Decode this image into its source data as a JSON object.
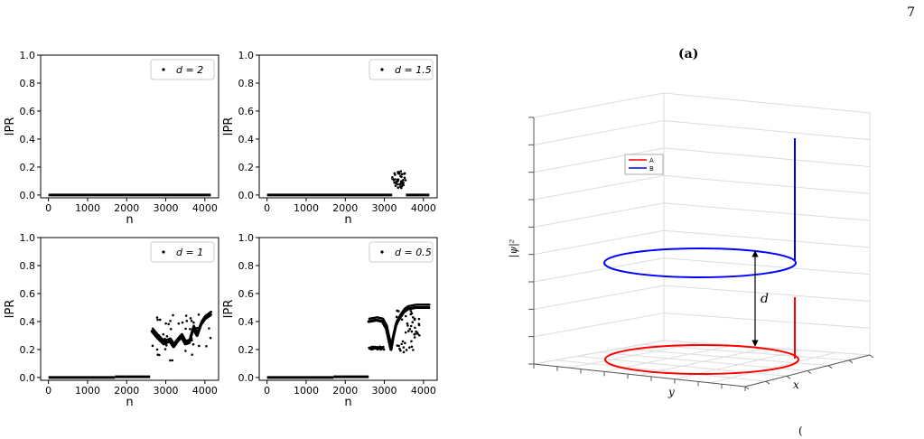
{
  "page_number": "7",
  "panel_a_label": "(a)",
  "panel_b_label_partial": "(",
  "chart_data": [
    {
      "type": "scatter",
      "xlabel": "n",
      "ylabel": "IPR",
      "xticks": [
        "0",
        "1000",
        "2000",
        "3000",
        "4000"
      ],
      "yticks": [
        "0.0",
        "0.2",
        "0.4",
        "0.6",
        "0.8",
        "1.0"
      ],
      "xlim": [
        -200,
        4350
      ],
      "ylim": [
        -0.02,
        1.0
      ],
      "legend": "d = 2",
      "legend_position": "top-right",
      "segments": [
        {
          "x": [
            0,
            4150
          ],
          "y": 0.0
        }
      ]
    },
    {
      "type": "scatter",
      "xlabel": "n",
      "ylabel": "IPR",
      "xticks": [
        "0",
        "1000",
        "2000",
        "3000",
        "4000"
      ],
      "yticks": [
        "0.0",
        "0.2",
        "0.4",
        "0.6",
        "0.8",
        "1.0"
      ],
      "xlim": [
        -200,
        4350
      ],
      "ylim": [
        -0.02,
        1.0
      ],
      "legend": "d = 1.5",
      "legend_position": "top-right",
      "segments": [
        {
          "x": [
            0,
            3200
          ],
          "y": 0.0
        },
        {
          "x": [
            3550,
            4150
          ],
          "y": 0.0
        }
      ],
      "clusters": [
        {
          "x": [
            3200,
            3550
          ],
          "y": [
            0.05,
            0.17
          ]
        }
      ]
    },
    {
      "type": "scatter",
      "xlabel": "n",
      "ylabel": "IPR",
      "xticks": [
        "0",
        "1000",
        "2000",
        "3000",
        "4000"
      ],
      "yticks": [
        "0.0",
        "0.2",
        "0.4",
        "0.6",
        "0.8",
        "1.0"
      ],
      "xlim": [
        -200,
        4350
      ],
      "ylim": [
        -0.02,
        1.0
      ],
      "legend": "d = 1",
      "legend_position": "top-right",
      "segments": [
        {
          "x": [
            0,
            1700
          ],
          "y": 0.0
        },
        {
          "x": [
            1700,
            2600
          ],
          "y": 0.005
        }
      ],
      "curve": {
        "x": [
          2650,
          2800,
          2950,
          3100,
          3200,
          3300,
          3400,
          3500,
          3600,
          3700,
          3800,
          3900,
          4000,
          4100,
          4150
        ],
        "y": [
          0.33,
          0.28,
          0.24,
          0.26,
          0.22,
          0.26,
          0.29,
          0.24,
          0.25,
          0.35,
          0.3,
          0.38,
          0.42,
          0.44,
          0.45
        ]
      },
      "clusters": [
        {
          "x": [
            2650,
            4150
          ],
          "y": [
            0.12,
            0.45
          ]
        }
      ]
    },
    {
      "type": "scatter",
      "xlabel": "n",
      "ylabel": "IPR",
      "xticks": [
        "0",
        "1000",
        "2000",
        "3000",
        "4000"
      ],
      "yticks": [
        "0.0",
        "0.2",
        "0.4",
        "0.6",
        "0.8",
        "1.0"
      ],
      "xlim": [
        -200,
        4350
      ],
      "ylim": [
        -0.02,
        1.0
      ],
      "legend": "d = 0.5",
      "legend_position": "top-right",
      "segments": [
        {
          "x": [
            0,
            1700
          ],
          "y": 0.0
        },
        {
          "x": [
            1700,
            2600
          ],
          "y": 0.005
        }
      ],
      "curve": {
        "x": [
          2600,
          2800,
          2950,
          3050,
          3120,
          3170,
          3220,
          3300,
          3400,
          3500,
          3600,
          3800,
          4000,
          4150
        ],
        "y": [
          0.4,
          0.41,
          0.4,
          0.35,
          0.26,
          0.2,
          0.28,
          0.38,
          0.43,
          0.47,
          0.49,
          0.5,
          0.5,
          0.5
        ]
      },
      "clusters": [
        {
          "x": [
            2600,
            3000
          ],
          "y": [
            0.2,
            0.22
          ]
        },
        {
          "x": [
            3300,
            3900
          ],
          "y": [
            0.18,
            0.48
          ]
        }
      ]
    }
  ],
  "plot3d": {
    "zlabel": "|ψ|²",
    "ylabel": "y",
    "xlabel": "x",
    "legend": [
      {
        "name": "A",
        "color": "#ff0000"
      },
      {
        "name": "B",
        "color": "#0000ff"
      }
    ],
    "distance_label": "d"
  }
}
